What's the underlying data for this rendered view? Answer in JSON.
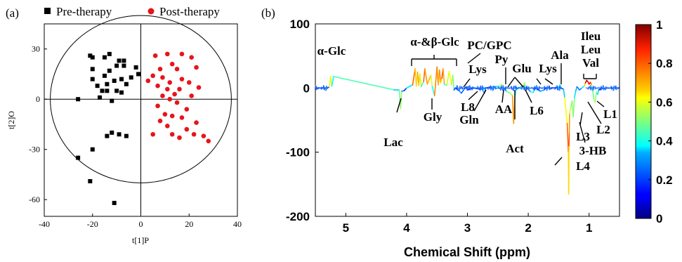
{
  "chart_data": [
    {
      "type": "scatter",
      "panel_label": "(a)",
      "xlabel": "t[1]P",
      "ylabel": "t[2]O",
      "xlim": [
        -40,
        40
      ],
      "ylim": [
        -70,
        45
      ],
      "xticks": [
        -40,
        -20,
        0,
        20,
        40
      ],
      "yticks": [
        30,
        0,
        -30,
        -60
      ],
      "grid": false,
      "legend_position": "top",
      "ellipse": {
        "cx": 0,
        "cy": 0,
        "rx": 37.5,
        "ry": 50
      },
      "series": [
        {
          "name": "Pre-therapy",
          "color": "#000000",
          "marker": "square",
          "points": [
            [
              -21,
              26
            ],
            [
              -20,
              25
            ],
            [
              -15,
              25
            ],
            [
              -13,
              27
            ],
            [
              -9,
              23
            ],
            [
              -7,
              23
            ],
            [
              -7,
              20
            ],
            [
              -2,
              19
            ],
            [
              -10,
              20
            ],
            [
              -1,
              15
            ],
            [
              -20,
              18
            ],
            [
              -13,
              17
            ],
            [
              -15,
              14
            ],
            [
              -20,
              12
            ],
            [
              -18,
              8
            ],
            [
              -14,
              9
            ],
            [
              -11,
              11
            ],
            [
              -8,
              12
            ],
            [
              -6,
              9
            ],
            [
              -4,
              13
            ],
            [
              -16,
              5
            ],
            [
              -14,
              5
            ],
            [
              -10,
              5
            ],
            [
              -8,
              4
            ],
            [
              -26,
              0
            ],
            [
              -17,
              1
            ],
            [
              -12,
              -1
            ],
            [
              -12,
              -20
            ],
            [
              -9,
              -21
            ],
            [
              -6,
              -22
            ],
            [
              -14,
              -22
            ],
            [
              -20,
              -30
            ],
            [
              -26,
              -35
            ],
            [
              -21,
              -49
            ],
            [
              -11,
              -62
            ]
          ]
        },
        {
          "name": "Post-therapy",
          "color": "#e8141a",
          "marker": "circle",
          "points": [
            [
              6,
              26
            ],
            [
              11,
              27
            ],
            [
              17,
              27
            ],
            [
              21,
              25
            ],
            [
              13,
              21
            ],
            [
              8,
              18
            ],
            [
              15,
              18
            ],
            [
              23,
              19
            ],
            [
              5,
              14
            ],
            [
              9,
              13
            ],
            [
              17,
              12
            ],
            [
              3,
              11
            ],
            [
              12,
              10
            ],
            [
              20,
              10
            ],
            [
              7,
              8
            ],
            [
              11,
              6
            ],
            [
              16,
              6
            ],
            [
              24,
              7
            ],
            [
              14,
              3
            ],
            [
              9,
              2
            ],
            [
              21,
              2
            ],
            [
              12,
              0
            ],
            [
              15,
              -2
            ],
            [
              7,
              -4
            ],
            [
              19,
              -6
            ],
            [
              10,
              -9
            ],
            [
              13,
              -10
            ],
            [
              17,
              -11
            ],
            [
              8,
              -13
            ],
            [
              23,
              -14
            ],
            [
              11,
              -16
            ],
            [
              19,
              -18
            ],
            [
              13,
              -21
            ],
            [
              22,
              -21
            ],
            [
              26,
              -22
            ],
            [
              16,
              -23
            ],
            [
              28,
              -25
            ],
            [
              5,
              -21
            ]
          ]
        }
      ]
    },
    {
      "type": "line",
      "panel_label": "(b)",
      "xlabel": "Chemical Shift (ppm)",
      "xlim": [
        5.5,
        0.5
      ],
      "ylim": [
        -200,
        100
      ],
      "xticks": [
        5,
        4,
        3,
        2,
        1
      ],
      "yticks": [
        100,
        0,
        -100,
        -200
      ],
      "colorbar": {
        "min": 0,
        "max": 1,
        "ticks": [
          1,
          0.8,
          0.6,
          0.4,
          0.2,
          0
        ],
        "colormap": "jet"
      },
      "series": [
        {
          "name": "",
          "x": [
            5.5,
            5.3,
            5.27,
            5.25,
            5.23,
            5.2,
            4.2,
            4.12,
            4.1,
            4.08,
            4.04,
            4.0,
            3.9,
            3.86,
            3.84,
            3.82,
            3.8,
            3.78,
            3.76,
            3.72,
            3.7,
            3.66,
            3.6,
            3.58,
            3.54,
            3.5,
            3.48,
            3.46,
            3.44,
            3.42,
            3.4,
            3.38,
            3.34,
            3.3,
            3.26,
            3.24,
            3.22,
            3.2,
            3.14,
            3.1,
            3.04,
            3.02,
            3.0,
            2.9,
            2.76,
            2.72,
            2.7,
            2.6,
            2.46,
            2.44,
            2.42,
            2.4,
            2.36,
            2.3,
            2.26,
            2.24,
            2.22,
            2.2,
            2.1,
            2.06,
            2.04,
            2.02,
            1.96,
            1.92,
            1.9,
            1.88,
            1.8,
            1.74,
            1.72,
            1.7,
            1.6,
            1.5,
            1.48,
            1.46,
            1.42,
            1.4,
            1.36,
            1.34,
            1.335,
            1.33,
            1.325,
            1.32,
            1.3,
            1.28,
            1.26,
            1.24,
            1.22,
            1.2,
            1.18,
            1.16,
            1.12,
            1.08,
            1.06,
            1.04,
            1.02,
            1.0,
            0.98,
            0.96,
            0.94,
            0.92,
            0.9,
            0.88,
            0.86,
            0.84,
            0.8,
            0.7,
            0.6,
            0.5
          ],
          "y": [
            0,
            0,
            2,
            18,
            3,
            18,
            -3,
            -3,
            -32,
            -5,
            -4,
            0,
            5,
            30,
            3,
            25,
            4,
            22,
            2,
            10,
            30,
            6,
            20,
            3,
            -12,
            33,
            5,
            28,
            8,
            15,
            30,
            6,
            4,
            26,
            5,
            20,
            -3,
            0,
            -4,
            -8,
            0,
            2,
            -3,
            0,
            -2,
            -8,
            0,
            2,
            3,
            6,
            -3,
            0,
            -5,
            -8,
            -12,
            -55,
            -15,
            -2,
            3,
            8,
            -2,
            0,
            -6,
            -7,
            -3,
            0,
            -5,
            -3,
            0,
            0,
            0,
            1,
            5,
            0,
            -2,
            -15,
            -55,
            -100,
            -165,
            -90,
            -70,
            -40,
            -30,
            -20,
            -45,
            -15,
            -5,
            2,
            0,
            -3,
            0,
            3,
            8,
            12,
            10,
            6,
            9,
            5,
            -4,
            -18,
            -22,
            -6,
            -10,
            -3,
            -1,
            0,
            0,
            0
          ],
          "color_weight": [
            0.05,
            0.1,
            0.3,
            0.9,
            0.3,
            0.45,
            0.45,
            0.2,
            0.75,
            0.3,
            0.2,
            0.1,
            0.6,
            0.95,
            0.4,
            0.92,
            0.5,
            0.85,
            0.3,
            0.6,
            0.95,
            0.5,
            0.9,
            0.3,
            0.5,
            0.98,
            0.5,
            0.9,
            0.6,
            0.7,
            0.92,
            0.5,
            0.3,
            0.85,
            0.4,
            0.7,
            0.3,
            0.1,
            0.2,
            0.35,
            0.1,
            0.2,
            0.2,
            0.1,
            0.2,
            0.4,
            0.1,
            0.2,
            0.5,
            0.7,
            0.3,
            0.1,
            0.4,
            0.5,
            0.6,
            0.85,
            0.6,
            0.2,
            0.5,
            0.7,
            0.3,
            0.1,
            0.4,
            0.5,
            0.2,
            0.1,
            0.3,
            0.3,
            0.1,
            0.1,
            0.1,
            0.2,
            0.6,
            0.1,
            0.2,
            0.45,
            0.8,
            0.75,
            0.6,
            0.72,
            0.85,
            0.6,
            0.55,
            0.45,
            0.6,
            0.4,
            0.3,
            0.3,
            0.2,
            0.3,
            0.2,
            0.5,
            0.85,
            0.98,
            0.95,
            0.8,
            0.92,
            0.7,
            0.4,
            0.55,
            0.6,
            0.45,
            0.5,
            0.2,
            0.1,
            0.05,
            0.05,
            0.05
          ]
        }
      ],
      "annotations": [
        {
          "text": "α-Glc"
        },
        {
          "text": "α-&β-Glc"
        },
        {
          "text": "PC/GPC"
        },
        {
          "text": "Lys"
        },
        {
          "text": "Py"
        },
        {
          "text": "Glu"
        },
        {
          "text": "Lys"
        },
        {
          "text": "Ala"
        },
        {
          "text": "Ileu"
        },
        {
          "text": "Leu"
        },
        {
          "text": "Val"
        },
        {
          "text": "Lac"
        },
        {
          "text": "Gly"
        },
        {
          "text": "L8"
        },
        {
          "text": "Gln"
        },
        {
          "text": "AA"
        },
        {
          "text": "L6"
        },
        {
          "text": "Act"
        },
        {
          "text": "L1"
        },
        {
          "text": "L2"
        },
        {
          "text": "L3"
        },
        {
          "text": "3-HB"
        },
        {
          "text": "L4"
        }
      ]
    }
  ],
  "colors": {
    "pre": "#000000",
    "post": "#e8141a"
  }
}
